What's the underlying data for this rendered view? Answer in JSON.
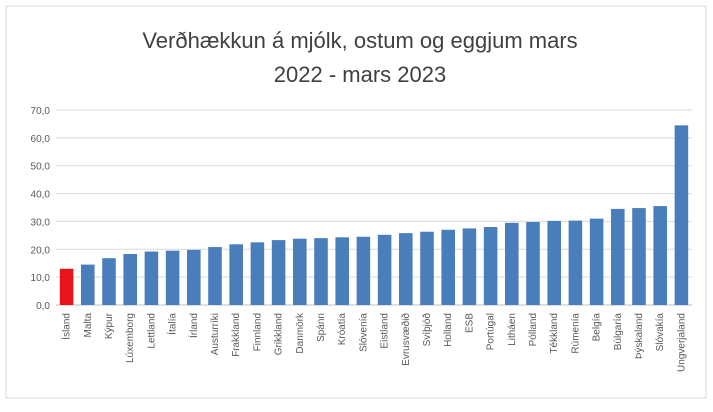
{
  "chart_data": {
    "type": "bar",
    "title": [
      "Verðhækkun á mjólk, ostum og eggjum mars",
      "2022 - mars 2023"
    ],
    "categories": [
      "Ísland",
      "Malta",
      "Kýpur",
      "Lúxemborg",
      "Lettland",
      "Ítalía",
      "Írland",
      "Austurríki",
      "Frakkland",
      "Finnland",
      "Grikkland",
      "Danmörk",
      "Spánn",
      "Króatía",
      "Slóvenía",
      "Eistland",
      "Evrusvæðið",
      "Svíþjóð",
      "Holland",
      "ESB",
      "Portúgal",
      "Litháen",
      "Pólland",
      "Tékkland",
      "Rúmenía",
      "Belgía",
      "Búlgaría",
      "Þýskaland",
      "Slóvakía",
      "Ungverjaland"
    ],
    "values": [
      13.0,
      14.5,
      16.8,
      18.3,
      19.2,
      19.5,
      19.8,
      20.8,
      21.8,
      22.5,
      23.3,
      23.8,
      24.0,
      24.3,
      24.5,
      25.2,
      25.8,
      26.3,
      27.0,
      27.5,
      28.0,
      29.5,
      29.8,
      30.2,
      30.3,
      31.0,
      34.5,
      34.8,
      35.5,
      64.5
    ],
    "colors": [
      "#e8141c",
      "#4a7ebb",
      "#4a7ebb",
      "#4a7ebb",
      "#4a7ebb",
      "#4a7ebb",
      "#4a7ebb",
      "#4a7ebb",
      "#4a7ebb",
      "#4a7ebb",
      "#4a7ebb",
      "#4a7ebb",
      "#4a7ebb",
      "#4a7ebb",
      "#4a7ebb",
      "#4a7ebb",
      "#4a7ebb",
      "#4a7ebb",
      "#4a7ebb",
      "#4a7ebb",
      "#4a7ebb",
      "#4a7ebb",
      "#4a7ebb",
      "#4a7ebb",
      "#4a7ebb",
      "#4a7ebb",
      "#4a7ebb",
      "#4a7ebb",
      "#4a7ebb",
      "#4a7ebb"
    ],
    "ylim": [
      0,
      70
    ],
    "yticks": [
      {
        "value": 0,
        "label": "0,0"
      },
      {
        "value": 10,
        "label": "10,0"
      },
      {
        "value": 20,
        "label": "20,0"
      },
      {
        "value": 30,
        "label": "30,0"
      },
      {
        "value": 40,
        "label": "40,0"
      },
      {
        "value": 50,
        "label": "50,0"
      },
      {
        "value": 60,
        "label": "60,0"
      },
      {
        "value": 70,
        "label": "70,0"
      }
    ],
    "grid": true
  }
}
